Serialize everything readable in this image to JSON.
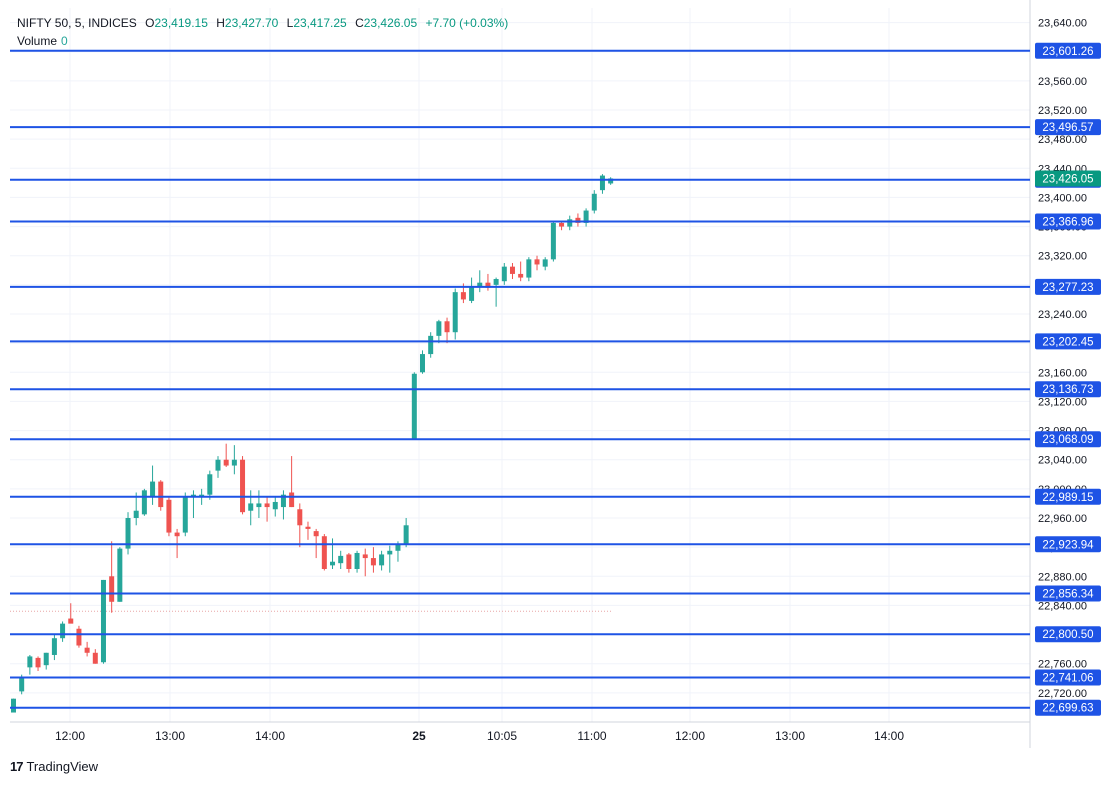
{
  "header": {
    "symbol": "NIFTY 50, 5, INDICES",
    "open_label": "O",
    "open": "23,419.15",
    "high_label": "H",
    "high": "23,427.70",
    "low_label": "L",
    "low": "23,417.25",
    "close_label": "C",
    "close": "23,426.05",
    "change": "+7.70 (+0.03%)",
    "volume_label": "Volume",
    "volume": "0"
  },
  "footer": {
    "brand_logo": "17",
    "brand_name": "TradingView"
  },
  "colors": {
    "up": "#26a69a",
    "down": "#ef5350",
    "line": "#1e53e5",
    "price_tag": "#089981",
    "grid": "#f0f3fa",
    "axis_text": "#131722"
  },
  "chart_data": {
    "type": "candlestick",
    "symbol": "NIFTY 50",
    "interval": "5",
    "y_axis": {
      "min": 22680,
      "max": 23660,
      "tick_labels": [
        "23,640.00",
        "23,600.00",
        "23,560.00",
        "23,520.00",
        "23,480.00",
        "23,440.00",
        "23,400.00",
        "23,360.00",
        "23,320.00",
        "23,280.00",
        "23,240.00",
        "23,200.00",
        "23,160.00",
        "23,120.00",
        "23,080.00",
        "23,040.00",
        "23,000.00",
        "22,960.00",
        "22,920.00",
        "22,880.00",
        "22,840.00",
        "22,800.00",
        "22,760.00",
        "22,720.00"
      ]
    },
    "x_axis": {
      "tick_labels": [
        "12:00",
        "13:00",
        "14:00",
        "25",
        "10:05",
        "11:00",
        "12:00",
        "13:00",
        "14:00"
      ]
    },
    "horizontal_levels": [
      "23,601.26",
      "23,496.57",
      "23,424.29",
      "23,366.96",
      "23,277.23",
      "23,202.45",
      "23,136.73",
      "23,068.09",
      "22,989.15",
      "22,923.94",
      "22,856.34",
      "22,800.50",
      "22,741.06",
      "22,699.63"
    ],
    "last_price": "23,426.05",
    "previous_close_marker": 22832,
    "candles": [
      {
        "o": 22693,
        "h": 22712,
        "l": 22693,
        "c": 22712
      },
      {
        "o": 22722,
        "h": 22745,
        "l": 22718,
        "c": 22740
      },
      {
        "o": 22755,
        "h": 22772,
        "l": 22745,
        "c": 22770
      },
      {
        "o": 22768,
        "h": 22770,
        "l": 22750,
        "c": 22755
      },
      {
        "o": 22758,
        "h": 22775,
        "l": 22752,
        "c": 22775
      },
      {
        "o": 22772,
        "h": 22800,
        "l": 22765,
        "c": 22795
      },
      {
        "o": 22795,
        "h": 22818,
        "l": 22790,
        "c": 22815
      },
      {
        "o": 22822,
        "h": 22843,
        "l": 22818,
        "c": 22815
      },
      {
        "o": 22808,
        "h": 22812,
        "l": 22782,
        "c": 22785
      },
      {
        "o": 22782,
        "h": 22790,
        "l": 22770,
        "c": 22775
      },
      {
        "o": 22775,
        "h": 22780,
        "l": 22760,
        "c": 22760
      },
      {
        "o": 22762,
        "h": 22875,
        "l": 22760,
        "c": 22875
      },
      {
        "o": 22880,
        "h": 22928,
        "l": 22830,
        "c": 22845
      },
      {
        "o": 22845,
        "h": 22920,
        "l": 22845,
        "c": 22918
      },
      {
        "o": 22918,
        "h": 22968,
        "l": 22910,
        "c": 22960
      },
      {
        "o": 22960,
        "h": 22995,
        "l": 22950,
        "c": 22970
      },
      {
        "o": 22965,
        "h": 23000,
        "l": 22963,
        "c": 22998
      },
      {
        "o": 22990,
        "h": 23032,
        "l": 22978,
        "c": 23010
      },
      {
        "o": 23010,
        "h": 23012,
        "l": 22970,
        "c": 22975
      },
      {
        "o": 22985,
        "h": 22988,
        "l": 22935,
        "c": 22940
      },
      {
        "o": 22940,
        "h": 22945,
        "l": 22905,
        "c": 22935
      },
      {
        "o": 22940,
        "h": 22995,
        "l": 22935,
        "c": 22990
      },
      {
        "o": 22990,
        "h": 22998,
        "l": 22960,
        "c": 22992
      },
      {
        "o": 22990,
        "h": 23000,
        "l": 22978,
        "c": 22992
      },
      {
        "o": 22992,
        "h": 23025,
        "l": 22985,
        "c": 23020
      },
      {
        "o": 23025,
        "h": 23045,
        "l": 23015,
        "c": 23040
      },
      {
        "o": 23040,
        "h": 23062,
        "l": 23030,
        "c": 23032
      },
      {
        "o": 23032,
        "h": 23060,
        "l": 23020,
        "c": 23040
      },
      {
        "o": 23040,
        "h": 23045,
        "l": 22965,
        "c": 22968
      },
      {
        "o": 22970,
        "h": 22998,
        "l": 22950,
        "c": 22980
      },
      {
        "o": 22975,
        "h": 22998,
        "l": 22960,
        "c": 22980
      },
      {
        "o": 22980,
        "h": 22990,
        "l": 22955,
        "c": 22975
      },
      {
        "o": 22972,
        "h": 22990,
        "l": 22962,
        "c": 22982
      },
      {
        "o": 22975,
        "h": 22998,
        "l": 22958,
        "c": 22992
      },
      {
        "o": 22995,
        "h": 23045,
        "l": 22975,
        "c": 22975
      },
      {
        "o": 22972,
        "h": 22980,
        "l": 22920,
        "c": 22950
      },
      {
        "o": 22948,
        "h": 22955,
        "l": 22930,
        "c": 22945
      },
      {
        "o": 22942,
        "h": 22945,
        "l": 22905,
        "c": 22935
      },
      {
        "o": 22935,
        "h": 22938,
        "l": 22888,
        "c": 22890
      },
      {
        "o": 22895,
        "h": 22932,
        "l": 22890,
        "c": 22900
      },
      {
        "o": 22898,
        "h": 22915,
        "l": 22890,
        "c": 22908
      },
      {
        "o": 22910,
        "h": 22912,
        "l": 22885,
        "c": 22890
      },
      {
        "o": 22890,
        "h": 22915,
        "l": 22885,
        "c": 22912
      },
      {
        "o": 22910,
        "h": 22918,
        "l": 22880,
        "c": 22905
      },
      {
        "o": 22905,
        "h": 22920,
        "l": 22885,
        "c": 22895
      },
      {
        "o": 22895,
        "h": 22915,
        "l": 22888,
        "c": 22910
      },
      {
        "o": 22910,
        "h": 22922,
        "l": 22885,
        "c": 22915
      },
      {
        "o": 22915,
        "h": 22928,
        "l": 22900,
        "c": 22925
      },
      {
        "o": 22925,
        "h": 22960,
        "l": 22920,
        "c": 22950
      },
      {
        "o": 23068,
        "h": 23160,
        "l": 23068,
        "c": 23158
      },
      {
        "o": 23160,
        "h": 23190,
        "l": 23158,
        "c": 23185
      },
      {
        "o": 23185,
        "h": 23215,
        "l": 23180,
        "c": 23210
      },
      {
        "o": 23210,
        "h": 23232,
        "l": 23200,
        "c": 23230
      },
      {
        "o": 23230,
        "h": 23235,
        "l": 23200,
        "c": 23215
      },
      {
        "o": 23215,
        "h": 23275,
        "l": 23205,
        "c": 23270
      },
      {
        "o": 23270,
        "h": 23282,
        "l": 23255,
        "c": 23260
      },
      {
        "o": 23258,
        "h": 23290,
        "l": 23255,
        "c": 23278
      },
      {
        "o": 23278,
        "h": 23300,
        "l": 23270,
        "c": 23283
      },
      {
        "o": 23283,
        "h": 23295,
        "l": 23272,
        "c": 23276
      },
      {
        "o": 23280,
        "h": 23290,
        "l": 23250,
        "c": 23288
      },
      {
        "o": 23285,
        "h": 23310,
        "l": 23280,
        "c": 23305
      },
      {
        "o": 23305,
        "h": 23310,
        "l": 23288,
        "c": 23295
      },
      {
        "o": 23295,
        "h": 23312,
        "l": 23285,
        "c": 23290
      },
      {
        "o": 23290,
        "h": 23318,
        "l": 23285,
        "c": 23315
      },
      {
        "o": 23315,
        "h": 23320,
        "l": 23300,
        "c": 23308
      },
      {
        "o": 23305,
        "h": 23318,
        "l": 23300,
        "c": 23315
      },
      {
        "o": 23315,
        "h": 23368,
        "l": 23312,
        "c": 23365
      },
      {
        "o": 23365,
        "h": 23368,
        "l": 23355,
        "c": 23360
      },
      {
        "o": 23360,
        "h": 23375,
        "l": 23355,
        "c": 23370
      },
      {
        "o": 23372,
        "h": 23378,
        "l": 23360,
        "c": 23365
      },
      {
        "o": 23365,
        "h": 23385,
        "l": 23360,
        "c": 23382
      },
      {
        "o": 23382,
        "h": 23410,
        "l": 23378,
        "c": 23405
      },
      {
        "o": 23410,
        "h": 23432,
        "l": 23405,
        "c": 23430
      },
      {
        "o": 23419.15,
        "h": 23427.7,
        "l": 23417.25,
        "c": 23426.05
      }
    ]
  }
}
